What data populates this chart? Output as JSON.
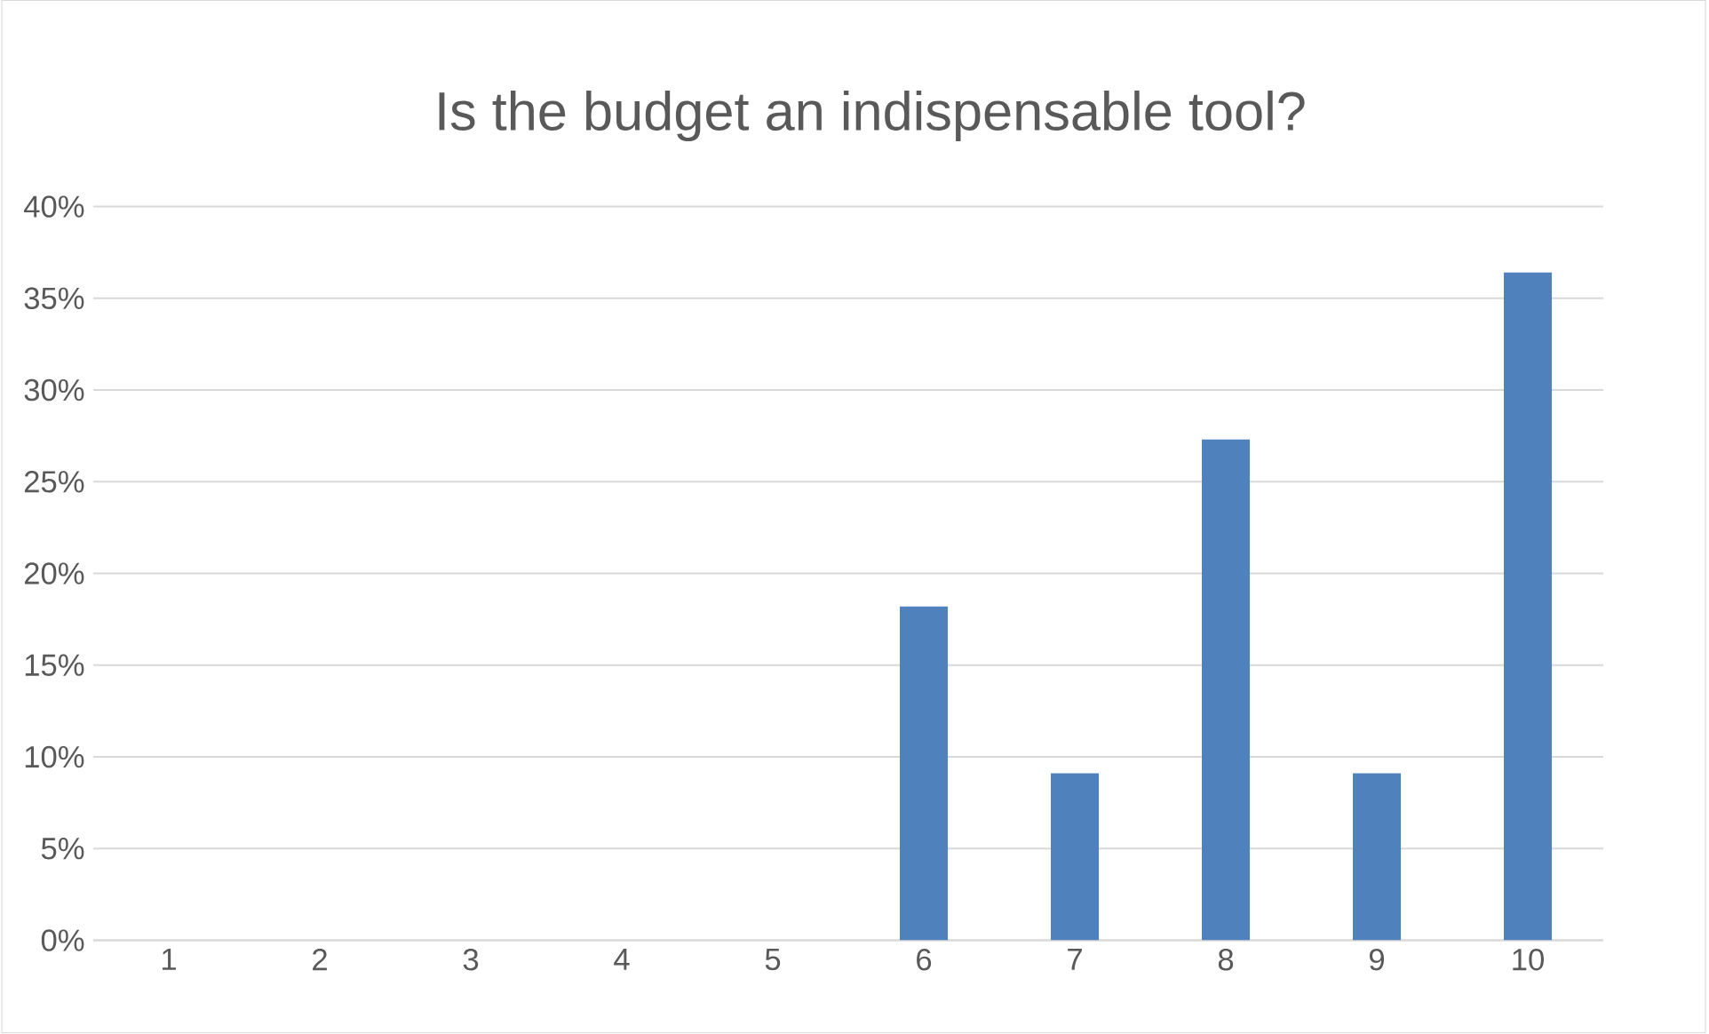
{
  "chart_data": {
    "type": "bar",
    "title": "Is the budget an indispensable tool?",
    "categories": [
      "1",
      "2",
      "3",
      "4",
      "5",
      "6",
      "7",
      "8",
      "9",
      "10"
    ],
    "values": [
      0,
      0,
      0,
      0,
      0,
      18.2,
      9.1,
      27.3,
      9.1,
      36.4
    ],
    "color": "#4f81bd",
    "ylim": [
      0,
      40
    ],
    "yticks": [
      {
        "value": 0,
        "label": "0%"
      },
      {
        "value": 5,
        "label": "5%"
      },
      {
        "value": 10,
        "label": "10%"
      },
      {
        "value": 15,
        "label": "15%"
      },
      {
        "value": 20,
        "label": "20%"
      },
      {
        "value": 25,
        "label": "25%"
      },
      {
        "value": 30,
        "label": "30%"
      },
      {
        "value": 35,
        "label": "35%"
      },
      {
        "value": 40,
        "label": "40%"
      }
    ],
    "grid": "y"
  }
}
